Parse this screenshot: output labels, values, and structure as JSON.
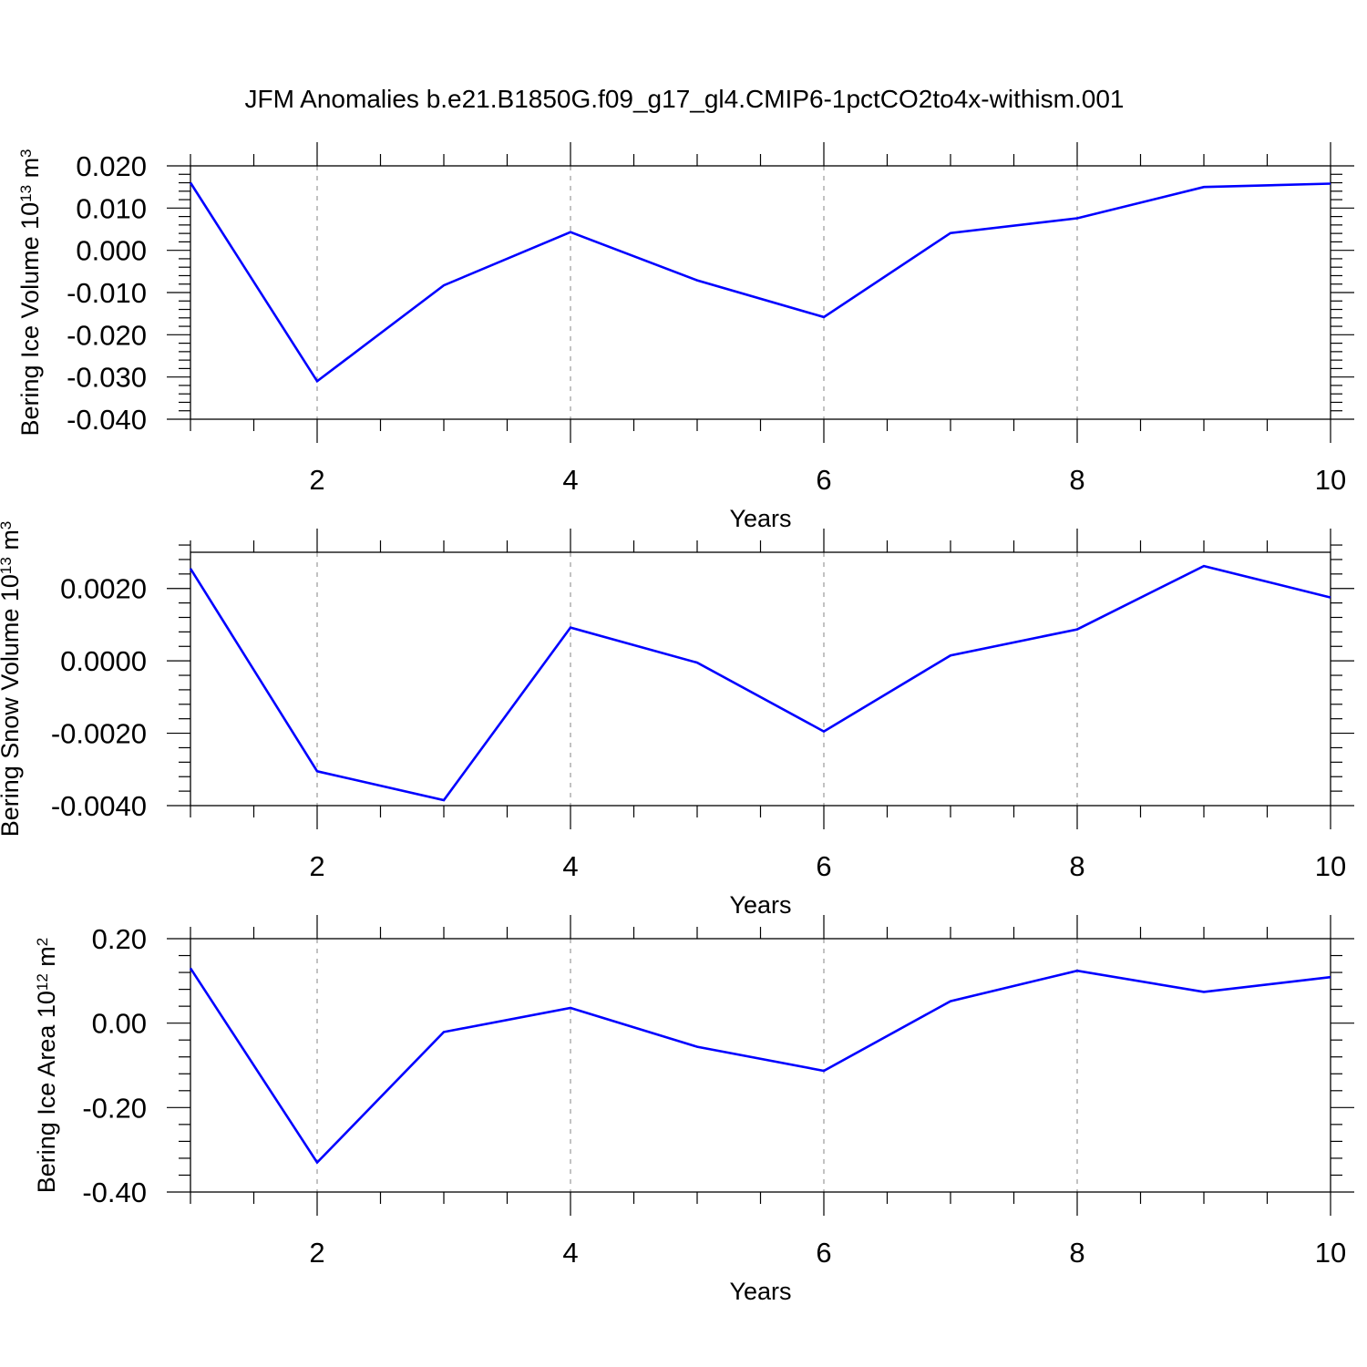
{
  "title": "JFM Anomalies b.e21.B1850G.f09_g17_gl4.CMIP6-1pctCO2to4x-withism.001",
  "colors": {
    "line": "#0000ff",
    "axis": "#000000",
    "grid": "#999999"
  },
  "chart_data": [
    {
      "type": "line",
      "xlabel": "Years",
      "ylabel": {
        "main": "Bering Ice Volume 10",
        "exp": "13",
        "unit": " m",
        "unit_exp": "3"
      },
      "xlim": [
        1,
        10
      ],
      "ylim": [
        -0.04,
        0.02
      ],
      "x_ticks": [
        2,
        4,
        6,
        8,
        10
      ],
      "x_tick_labels": [
        "2",
        "4",
        "6",
        "8",
        "10"
      ],
      "y_ticks": [
        0.02,
        0.01,
        0.0,
        -0.01,
        -0.02,
        -0.03,
        -0.04
      ],
      "y_tick_labels": [
        "0.020",
        "0.010",
        "0.000",
        "-0.010",
        "-0.020",
        "-0.030",
        "-0.040"
      ],
      "grid": "vertical dashed at major x ticks",
      "x": [
        1,
        2,
        3,
        4,
        5,
        6,
        7,
        8,
        9,
        10
      ],
      "values": [
        0.016,
        -0.031,
        -0.0083,
        0.0043,
        -0.0071,
        -0.0158,
        0.0041,
        0.0076,
        0.015,
        0.0158
      ]
    },
    {
      "type": "line",
      "xlabel": "Years",
      "ylabel": {
        "main": "Bering Snow Volume 10",
        "exp": "13",
        "unit": " m",
        "unit_exp": "3"
      },
      "xlim": [
        1,
        10
      ],
      "ylim": [
        -0.004,
        0.003
      ],
      "x_ticks": [
        2,
        4,
        6,
        8,
        10
      ],
      "x_tick_labels": [
        "2",
        "4",
        "6",
        "8",
        "10"
      ],
      "y_ticks": [
        0.002,
        0.0,
        -0.002,
        -0.004
      ],
      "y_tick_labels": [
        "0.0020",
        "0.0000",
        "-0.0020",
        "-0.0040"
      ],
      "grid": "vertical dashed at major x ticks",
      "x": [
        1,
        2,
        3,
        4,
        5,
        6,
        7,
        8,
        9,
        10
      ],
      "values": [
        0.00255,
        -0.00305,
        -0.00385,
        0.00092,
        -5e-05,
        -0.00195,
        0.00015,
        0.00087,
        0.00262,
        0.00175
      ]
    },
    {
      "type": "line",
      "xlabel": "Years",
      "ylabel": {
        "main": "Bering Ice Area 10",
        "exp": "12",
        "unit": " m",
        "unit_exp": "2"
      },
      "xlim": [
        1,
        10
      ],
      "ylim": [
        -0.4,
        0.2
      ],
      "x_ticks": [
        2,
        4,
        6,
        8,
        10
      ],
      "x_tick_labels": [
        "2",
        "4",
        "6",
        "8",
        "10"
      ],
      "y_ticks": [
        0.2,
        0.0,
        -0.2,
        -0.4
      ],
      "y_tick_labels": [
        "0.20",
        "0.00",
        "-0.20",
        "-0.40"
      ],
      "grid": "vertical dashed at major x ticks",
      "x": [
        1,
        2,
        3,
        4,
        5,
        6,
        7,
        8,
        9,
        10
      ],
      "values": [
        0.13,
        -0.33,
        -0.021,
        0.036,
        -0.056,
        -0.113,
        0.052,
        0.124,
        0.074,
        0.109
      ]
    }
  ]
}
